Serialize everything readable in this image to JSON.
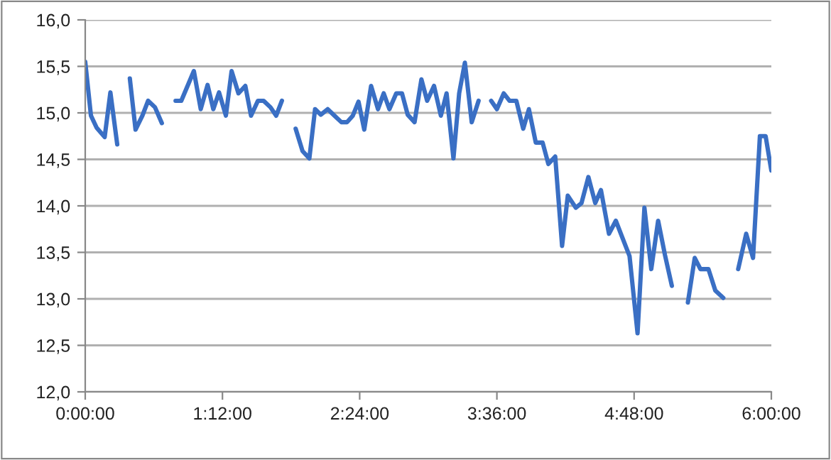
{
  "chart_data": {
    "type": "line",
    "x": [
      0,
      0.05,
      0.1,
      0.17,
      0.22,
      0.28,
      0.33,
      0.39,
      0.44,
      0.5,
      0.55,
      0.61,
      0.67,
      0.73,
      0.79,
      0.84,
      0.95,
      1.01,
      1.07,
      1.12,
      1.17,
      1.23,
      1.28,
      1.34,
      1.4,
      1.45,
      1.51,
      1.56,
      1.62,
      1.67,
      1.72,
      1.78,
      1.84,
      1.9,
      1.96,
      2.01,
      2.06,
      2.12,
      2.18,
      2.24,
      2.29,
      2.34,
      2.39,
      2.44,
      2.5,
      2.56,
      2.61,
      2.66,
      2.72,
      2.77,
      2.82,
      2.88,
      2.94,
      2.99,
      3.05,
      3.11,
      3.16,
      3.22,
      3.27,
      3.32,
      3.38,
      3.44,
      3.49,
      3.55,
      3.6,
      3.66,
      3.71,
      3.77,
      3.83,
      3.88,
      3.94,
      4.0,
      4.05,
      4.11,
      4.17,
      4.22,
      4.29,
      4.34,
      4.4,
      4.46,
      4.51,
      4.58,
      4.64,
      4.7,
      4.76,
      4.83,
      4.89,
      4.95,
      5.01,
      5.07,
      5.13,
      5.2,
      5.27,
      5.33,
      5.38,
      5.45,
      5.51,
      5.58,
      5.65,
      5.71,
      5.78,
      5.84,
      5.9,
      5.95,
      6.0
    ],
    "series": [
      {
        "color": "#3a6fc4",
        "values": [
          15.55,
          14.97,
          14.84,
          14.74,
          15.22,
          14.66,
          null,
          15.37,
          14.82,
          14.97,
          15.13,
          15.06,
          14.89,
          null,
          15.13,
          15.13,
          15.45,
          15.04,
          15.3,
          15.04,
          15.22,
          14.97,
          15.45,
          15.21,
          15.29,
          14.97,
          15.13,
          15.13,
          15.06,
          14.97,
          15.13,
          null,
          14.83,
          14.59,
          14.51,
          15.04,
          14.98,
          15.04,
          14.97,
          14.9,
          14.9,
          14.97,
          15.12,
          14.82,
          15.29,
          15.04,
          15.21,
          15.04,
          15.21,
          15.21,
          14.98,
          14.9,
          15.36,
          15.13,
          15.29,
          14.97,
          15.21,
          14.51,
          15.21,
          15.54,
          14.9,
          15.13,
          null,
          15.13,
          15.04,
          15.21,
          15.13,
          15.13,
          14.83,
          15.04,
          14.68,
          14.68,
          14.45,
          14.53,
          13.57,
          14.11,
          13.98,
          14.03,
          14.31,
          14.03,
          14.17,
          13.7,
          13.84,
          13.65,
          13.46,
          12.63,
          13.98,
          13.32,
          13.84,
          13.47,
          13.14,
          null,
          12.96,
          13.44,
          13.32,
          13.32,
          13.09,
          13.01,
          null,
          13.32,
          13.7,
          13.44,
          14.75,
          14.75,
          14.38
        ]
      }
    ],
    "xlim": [
      0,
      6
    ],
    "ylim": [
      12,
      16
    ],
    "xticks": [
      {
        "value": 0,
        "label": "0:00:00"
      },
      {
        "value": 1.2,
        "label": "1:12:00"
      },
      {
        "value": 2.4,
        "label": "2:24:00"
      },
      {
        "value": 3.6,
        "label": "3:36:00"
      },
      {
        "value": 4.8,
        "label": "4:48:00"
      },
      {
        "value": 6,
        "label": "6:00:00"
      }
    ],
    "yticks": [
      {
        "value": 12,
        "label": "12,0"
      },
      {
        "value": 12.5,
        "label": "12,5"
      },
      {
        "value": 13,
        "label": "13,0"
      },
      {
        "value": 13.5,
        "label": "13,5"
      },
      {
        "value": 14,
        "label": "14,0"
      },
      {
        "value": 14.5,
        "label": "14,5"
      },
      {
        "value": 15,
        "label": "15,0"
      },
      {
        "value": 15.5,
        "label": "15,5"
      },
      {
        "value": 16,
        "label": "16,0"
      }
    ],
    "grid": "y",
    "marker": "none",
    "line_style": "solid"
  }
}
